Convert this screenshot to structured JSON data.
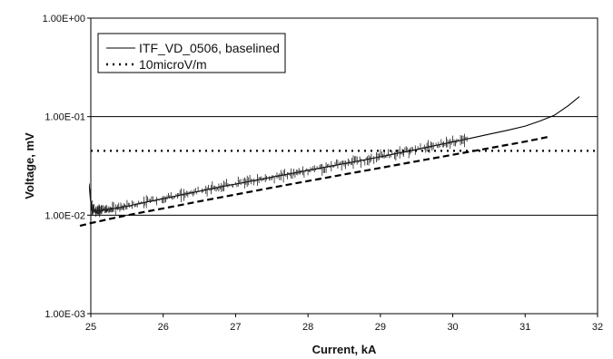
{
  "chart_data": {
    "type": "line",
    "title": "",
    "xlabel": "Current, kA",
    "ylabel": "Voltage, mV",
    "x_scale": "linear",
    "y_scale": "log",
    "xlim": [
      25,
      32
    ],
    "ylim": [
      0.001,
      1
    ],
    "x_ticks": [
      25,
      26,
      27,
      28,
      29,
      30,
      31,
      32
    ],
    "x_tick_labels": [
      "25",
      "26",
      "27",
      "28",
      "29",
      "30",
      "31",
      "32"
    ],
    "y_ticks": [
      0.001,
      0.01,
      0.1,
      1
    ],
    "y_tick_labels": [
      "1.00E-03",
      "1.00E-02",
      "1.00E-01",
      "1.00E+00"
    ],
    "grid": "horizontal major gridlines",
    "legend_position": "top-left",
    "series": [
      {
        "name": "ITF_VD_0506, baselined",
        "style": "solid-noisy",
        "color": "#000000",
        "x": [
          24.98,
          25.0,
          25.02,
          25.05,
          25.1,
          25.2,
          25.3,
          25.5,
          25.75,
          26.0,
          26.25,
          26.5,
          26.75,
          27.0,
          27.25,
          27.5,
          27.75,
          28.0,
          28.25,
          28.5,
          28.75,
          29.0,
          29.25,
          29.5,
          29.75,
          30.0,
          30.25,
          30.5,
          30.75,
          31.0,
          31.2,
          31.4,
          31.6,
          31.75
        ],
        "y": [
          0.0195,
          0.0135,
          0.0115,
          0.0112,
          0.0111,
          0.0113,
          0.0116,
          0.0123,
          0.0135,
          0.0147,
          0.0161,
          0.0175,
          0.0191,
          0.0207,
          0.0224,
          0.0243,
          0.0263,
          0.0285,
          0.0308,
          0.0333,
          0.0361,
          0.0392,
          0.0426,
          0.0464,
          0.0507,
          0.0553,
          0.0605,
          0.0662,
          0.0726,
          0.0801,
          0.09,
          0.103,
          0.13,
          0.16
        ]
      },
      {
        "name": "10microV/m",
        "style": "dotted",
        "color": "#000000",
        "x": [
          25,
          32
        ],
        "y": [
          0.045,
          0.045
        ]
      },
      {
        "name": "",
        "style": "dashed",
        "color": "#000000",
        "x": [
          24.85,
          25.0,
          25.3,
          25.6,
          26.0,
          26.5,
          27.0,
          27.5,
          28.0,
          28.5,
          29.0,
          29.5,
          30.0,
          30.5,
          31.0,
          31.35
        ],
        "y": [
          0.0078,
          0.0083,
          0.0093,
          0.0103,
          0.0117,
          0.0138,
          0.0162,
          0.019,
          0.0222,
          0.0259,
          0.0302,
          0.0352,
          0.041,
          0.0478,
          0.0558,
          0.063
        ]
      }
    ]
  }
}
